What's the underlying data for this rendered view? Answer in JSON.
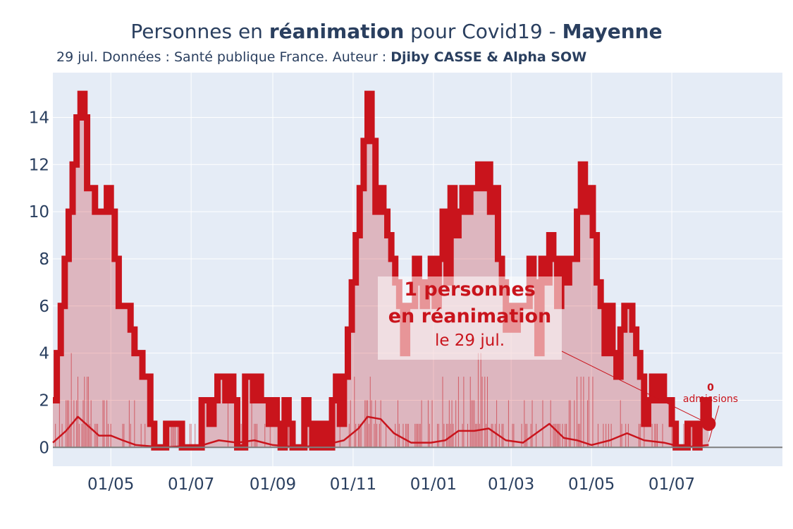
{
  "title": {
    "part1": "Personnes en ",
    "bold1": "réanimation",
    "part2": " pour Covid19 - ",
    "bold2": "Mayenne"
  },
  "subtitle": {
    "text": "29 jul. Données : Santé publique France. Auteur : ",
    "authors": "Djiby CASSE & Alpha SOW"
  },
  "annotation": {
    "line1": "1 personnes",
    "line2": "en réanimation",
    "line3": "le 29 jul."
  },
  "admissions_annotation": {
    "value": "0",
    "label": "admissions"
  },
  "colors": {
    "background": "#e5ecf6",
    "line": "#c9141c",
    "fill": "rgba(201,20,28,0.25)",
    "zero_line": "#7f7f7f",
    "text": "#2a3f5f"
  },
  "chart_data": {
    "type": "area",
    "x_start": "2020-03-18",
    "x_end": "2021-07-29",
    "x_range": [
      "2020-03-18",
      "2021-09-23"
    ],
    "ylim": [
      -0.8,
      15.9
    ],
    "y_ticks": [
      0,
      2,
      4,
      6,
      8,
      10,
      12,
      14
    ],
    "x_ticks": [
      {
        "date": "2020-05-01",
        "label": "01/05"
      },
      {
        "date": "2020-07-01",
        "label": "01/07"
      },
      {
        "date": "2020-09-01",
        "label": "01/09"
      },
      {
        "date": "2020-11-01",
        "label": "01/11"
      },
      {
        "date": "2021-01-01",
        "label": "01/01"
      },
      {
        "date": "2021-03-01",
        "label": "01/03"
      },
      {
        "date": "2021-05-01",
        "label": "01/05"
      },
      {
        "date": "2021-07-01",
        "label": "01/07"
      }
    ],
    "grid": true,
    "series": [
      {
        "name": "réanimation",
        "style": "thick line with area fill",
        "points": [
          [
            "2020-03-18",
            2
          ],
          [
            "2020-03-21",
            4
          ],
          [
            "2020-03-24",
            6
          ],
          [
            "2020-03-27",
            8
          ],
          [
            "2020-03-30",
            10
          ],
          [
            "2020-04-02",
            12
          ],
          [
            "2020-04-05",
            14
          ],
          [
            "2020-04-08",
            15
          ],
          [
            "2020-04-11",
            14
          ],
          [
            "2020-04-13",
            11
          ],
          [
            "2020-04-16",
            11
          ],
          [
            "2020-04-19",
            10
          ],
          [
            "2020-04-22",
            10
          ],
          [
            "2020-04-25",
            10
          ],
          [
            "2020-04-28",
            11
          ],
          [
            "2020-05-01",
            10
          ],
          [
            "2020-05-04",
            8
          ],
          [
            "2020-05-07",
            6
          ],
          [
            "2020-05-10",
            6
          ],
          [
            "2020-05-13",
            6
          ],
          [
            "2020-05-16",
            5
          ],
          [
            "2020-05-19",
            4
          ],
          [
            "2020-05-22",
            4
          ],
          [
            "2020-05-25",
            3
          ],
          [
            "2020-05-28",
            3
          ],
          [
            "2020-05-31",
            1
          ],
          [
            "2020-06-03",
            0
          ],
          [
            "2020-06-06",
            0
          ],
          [
            "2020-06-09",
            0
          ],
          [
            "2020-06-12",
            1
          ],
          [
            "2020-06-15",
            1
          ],
          [
            "2020-06-18",
            1
          ],
          [
            "2020-06-21",
            1
          ],
          [
            "2020-06-24",
            0
          ],
          [
            "2020-06-27",
            0
          ],
          [
            "2020-06-30",
            0
          ],
          [
            "2020-07-03",
            0
          ],
          [
            "2020-07-06",
            0
          ],
          [
            "2020-07-09",
            2
          ],
          [
            "2020-07-12",
            2
          ],
          [
            "2020-07-15",
            1
          ],
          [
            "2020-07-18",
            2
          ],
          [
            "2020-07-21",
            3
          ],
          [
            "2020-07-24",
            3
          ],
          [
            "2020-07-27",
            2
          ],
          [
            "2020-07-30",
            3
          ],
          [
            "2020-08-02",
            2
          ],
          [
            "2020-08-05",
            0
          ],
          [
            "2020-08-08",
            0
          ],
          [
            "2020-08-11",
            3
          ],
          [
            "2020-08-14",
            3
          ],
          [
            "2020-08-17",
            2
          ],
          [
            "2020-08-20",
            3
          ],
          [
            "2020-08-23",
            2
          ],
          [
            "2020-08-26",
            2
          ],
          [
            "2020-08-29",
            1
          ],
          [
            "2020-09-01",
            2
          ],
          [
            "2020-09-04",
            1
          ],
          [
            "2020-09-07",
            0
          ],
          [
            "2020-09-10",
            2
          ],
          [
            "2020-09-13",
            1
          ],
          [
            "2020-09-16",
            0
          ],
          [
            "2020-09-19",
            0
          ],
          [
            "2020-09-22",
            0
          ],
          [
            "2020-09-25",
            2
          ],
          [
            "2020-09-28",
            1
          ],
          [
            "2020-10-01",
            0
          ],
          [
            "2020-10-04",
            1
          ],
          [
            "2020-10-07",
            0
          ],
          [
            "2020-10-10",
            1
          ],
          [
            "2020-10-13",
            0
          ],
          [
            "2020-10-16",
            2
          ],
          [
            "2020-10-19",
            3
          ],
          [
            "2020-10-22",
            1
          ],
          [
            "2020-10-25",
            3
          ],
          [
            "2020-10-28",
            5
          ],
          [
            "2020-10-31",
            7
          ],
          [
            "2020-11-03",
            9
          ],
          [
            "2020-11-06",
            11
          ],
          [
            "2020-11-09",
            13
          ],
          [
            "2020-11-12",
            15
          ],
          [
            "2020-11-15",
            13
          ],
          [
            "2020-11-18",
            10
          ],
          [
            "2020-11-21",
            11
          ],
          [
            "2020-11-24",
            10
          ],
          [
            "2020-11-27",
            9
          ],
          [
            "2020-11-30",
            8
          ],
          [
            "2020-12-03",
            7
          ],
          [
            "2020-12-06",
            6
          ],
          [
            "2020-12-09",
            4
          ],
          [
            "2020-12-12",
            6
          ],
          [
            "2020-12-15",
            6
          ],
          [
            "2020-12-18",
            8
          ],
          [
            "2020-12-21",
            7
          ],
          [
            "2020-12-24",
            6
          ],
          [
            "2020-12-27",
            7
          ],
          [
            "2020-12-30",
            8
          ],
          [
            "2021-01-02",
            6
          ],
          [
            "2021-01-05",
            8
          ],
          [
            "2021-01-08",
            10
          ],
          [
            "2021-01-11",
            7
          ],
          [
            "2021-01-14",
            11
          ],
          [
            "2021-01-17",
            9
          ],
          [
            "2021-01-20",
            10
          ],
          [
            "2021-01-23",
            11
          ],
          [
            "2021-01-26",
            10
          ],
          [
            "2021-01-29",
            11
          ],
          [
            "2021-02-01",
            11
          ],
          [
            "2021-02-04",
            12
          ],
          [
            "2021-02-07",
            11
          ],
          [
            "2021-02-10",
            12
          ],
          [
            "2021-02-13",
            10
          ],
          [
            "2021-02-16",
            11
          ],
          [
            "2021-02-19",
            8
          ],
          [
            "2021-02-22",
            7
          ],
          [
            "2021-02-25",
            5
          ],
          [
            "2021-02-28",
            6
          ],
          [
            "2021-03-03",
            5
          ],
          [
            "2021-03-06",
            6
          ],
          [
            "2021-03-09",
            6
          ],
          [
            "2021-03-12",
            6
          ],
          [
            "2021-03-15",
            8
          ],
          [
            "2021-03-18",
            7
          ],
          [
            "2021-03-21",
            4
          ],
          [
            "2021-03-24",
            8
          ],
          [
            "2021-03-27",
            7
          ],
          [
            "2021-03-30",
            9
          ],
          [
            "2021-04-02",
            8
          ],
          [
            "2021-04-05",
            6
          ],
          [
            "2021-04-08",
            8
          ],
          [
            "2021-04-11",
            7
          ],
          [
            "2021-04-14",
            8
          ],
          [
            "2021-04-17",
            8
          ],
          [
            "2021-04-20",
            10
          ],
          [
            "2021-04-23",
            12
          ],
          [
            "2021-04-26",
            10
          ],
          [
            "2021-04-29",
            11
          ],
          [
            "2021-05-02",
            9
          ],
          [
            "2021-05-05",
            7
          ],
          [
            "2021-05-08",
            6
          ],
          [
            "2021-05-11",
            4
          ],
          [
            "2021-05-14",
            6
          ],
          [
            "2021-05-17",
            4
          ],
          [
            "2021-05-20",
            3
          ],
          [
            "2021-05-23",
            5
          ],
          [
            "2021-05-26",
            6
          ],
          [
            "2021-05-29",
            6
          ],
          [
            "2021-06-01",
            5
          ],
          [
            "2021-06-04",
            4
          ],
          [
            "2021-06-07",
            3
          ],
          [
            "2021-06-10",
            1
          ],
          [
            "2021-06-13",
            2
          ],
          [
            "2021-06-16",
            3
          ],
          [
            "2021-06-19",
            2
          ],
          [
            "2021-06-22",
            3
          ],
          [
            "2021-06-25",
            2
          ],
          [
            "2021-06-28",
            2
          ],
          [
            "2021-07-01",
            1
          ],
          [
            "2021-07-04",
            0
          ],
          [
            "2021-07-07",
            0
          ],
          [
            "2021-07-10",
            0
          ],
          [
            "2021-07-13",
            1
          ],
          [
            "2021-07-16",
            1
          ],
          [
            "2021-07-19",
            0
          ],
          [
            "2021-07-22",
            1
          ],
          [
            "2021-07-25",
            2
          ],
          [
            "2021-07-29",
            1
          ]
        ]
      },
      {
        "name": "moyenne admissions",
        "style": "thin line",
        "points": [
          [
            "2020-03-18",
            0.2
          ],
          [
            "2020-03-28",
            0.7
          ],
          [
            "2020-04-06",
            1.3
          ],
          [
            "2020-04-14",
            0.9
          ],
          [
            "2020-04-22",
            0.5
          ],
          [
            "2020-05-01",
            0.5
          ],
          [
            "2020-05-10",
            0.3
          ],
          [
            "2020-05-20",
            0.1
          ],
          [
            "2020-06-10",
            0
          ],
          [
            "2020-07-10",
            0.1
          ],
          [
            "2020-07-22",
            0.3
          ],
          [
            "2020-08-05",
            0.2
          ],
          [
            "2020-08-18",
            0.3
          ],
          [
            "2020-09-01",
            0.1
          ],
          [
            "2020-09-20",
            0
          ],
          [
            "2020-10-10",
            0.1
          ],
          [
            "2020-10-25",
            0.3
          ],
          [
            "2020-11-05",
            0.8
          ],
          [
            "2020-11-12",
            1.3
          ],
          [
            "2020-11-22",
            1.2
          ],
          [
            "2020-12-02",
            0.6
          ],
          [
            "2020-12-15",
            0.2
          ],
          [
            "2020-12-30",
            0.2
          ],
          [
            "2021-01-10",
            0.3
          ],
          [
            "2021-01-20",
            0.7
          ],
          [
            "2021-02-01",
            0.7
          ],
          [
            "2021-02-12",
            0.8
          ],
          [
            "2021-02-25",
            0.3
          ],
          [
            "2021-03-10",
            0.2
          ],
          [
            "2021-03-20",
            0.6
          ],
          [
            "2021-03-30",
            1.0
          ],
          [
            "2021-04-10",
            0.4
          ],
          [
            "2021-04-20",
            0.3
          ],
          [
            "2021-05-01",
            0.1
          ],
          [
            "2021-05-15",
            0.3
          ],
          [
            "2021-05-28",
            0.6
          ],
          [
            "2021-06-10",
            0.3
          ],
          [
            "2021-06-25",
            0.2
          ],
          [
            "2021-07-10",
            0
          ],
          [
            "2021-07-29",
            0.1
          ]
        ]
      }
    ],
    "last_point": {
      "date": "2021-07-29",
      "value": 1
    },
    "admissions_last": {
      "date": "2021-07-29",
      "value": 0
    }
  }
}
